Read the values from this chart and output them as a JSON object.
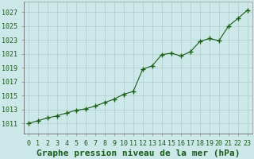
{
  "hours": [
    0,
    1,
    2,
    3,
    4,
    5,
    6,
    7,
    8,
    9,
    10,
    11,
    12,
    13,
    14,
    15,
    16,
    17,
    18,
    19,
    20,
    21,
    22,
    23
  ],
  "pressure": [
    1011.0,
    1011.4,
    1011.8,
    1012.1,
    1012.5,
    1012.9,
    1013.1,
    1013.5,
    1014.0,
    1014.5,
    1015.2,
    1015.6,
    1018.8,
    1019.3,
    1020.9,
    1021.1,
    1020.7,
    1021.3,
    1022.8,
    1023.2,
    1022.9,
    1025.0,
    1026.1,
    1027.3
  ],
  "line_color": "#1a5c1a",
  "marker_color": "#1a5c1a",
  "bg_color": "#cce8e8",
  "grid_color": "#b0cccc",
  "ylabel_color": "#1a5c1a",
  "title": "Graphe pression niveau de la mer (hPa)",
  "ylim_min": 1009.5,
  "ylim_max": 1028.5,
  "yticks": [
    1011,
    1013,
    1015,
    1017,
    1019,
    1021,
    1023,
    1025,
    1027
  ],
  "title_fontsize": 8.0,
  "tick_fontsize": 6.0
}
